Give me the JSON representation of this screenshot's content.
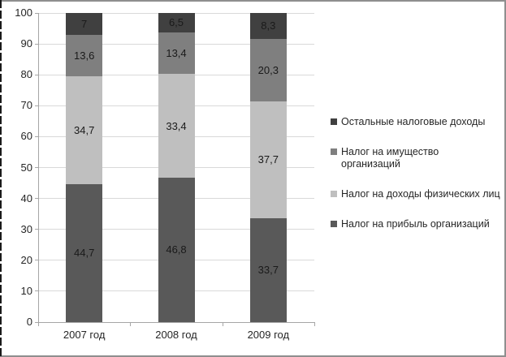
{
  "chart_data": {
    "type": "bar",
    "subtype": "stacked-100",
    "title": "",
    "xlabel": "",
    "ylabel": "",
    "grid": true,
    "legend_position": "right",
    "categories": [
      "2007 год",
      "2008 год",
      "2009 год"
    ],
    "series": [
      {
        "name": "Налог на прибыль организаций",
        "color": "#595959",
        "values": [
          44.7,
          46.8,
          33.7
        ],
        "labels": [
          "44,7",
          "46,8",
          "33,7"
        ]
      },
      {
        "name": "Налог на доходы физических лиц",
        "color": "#bfbfbf",
        "values": [
          34.7,
          33.4,
          37.7
        ],
        "labels": [
          "34,7",
          "33,4",
          "37,7"
        ]
      },
      {
        "name": "Налог на имущество организаций",
        "color": "#7f7f7f",
        "values": [
          13.6,
          13.4,
          20.3
        ],
        "labels": [
          "13,6",
          "13,4",
          "20,3"
        ]
      },
      {
        "name": "Остальные налоговые доходы",
        "color": "#404040",
        "values": [
          7,
          6.5,
          8.3
        ],
        "labels": [
          "7",
          "6,5",
          "8,3"
        ]
      }
    ],
    "legend": [
      {
        "label": "Остальные налоговые доходы",
        "color": "#404040"
      },
      {
        "label": "Налог на имущество\nорганизаций",
        "color": "#7f7f7f"
      },
      {
        "label": "Налог на доходы физических лиц",
        "color": "#bfbfbf"
      },
      {
        "label": "Налог на прибыль организаций",
        "color": "#595959"
      }
    ],
    "y_axis": {
      "min": 0,
      "max": 100,
      "step": 10,
      "ticks": [
        "0",
        "10",
        "20",
        "30",
        "40",
        "50",
        "60",
        "70",
        "80",
        "90",
        "100"
      ]
    },
    "colors": {
      "grid": "#d9d9d9",
      "axis": "#a6a6a6",
      "frame_border": "#8f8f8f",
      "dashed_border": "#1a1a1a",
      "label_text": "#262626",
      "data_label_text": "#1a1a1a",
      "background": "#ffffff"
    }
  }
}
